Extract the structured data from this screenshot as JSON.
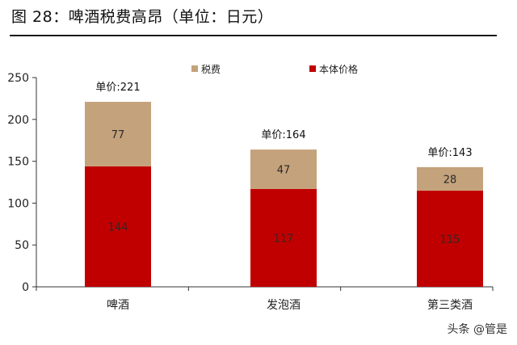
{
  "figure": {
    "title": "图 28：啤酒税费高昂（单位：日元）",
    "watermark": "头条 @管是"
  },
  "colors": {
    "tax": "#C4A27B",
    "base": "#C00000",
    "axis": "#333333"
  },
  "chart_data": {
    "type": "bar",
    "stacked": true,
    "categories": [
      "啤酒",
      "发泡酒",
      "第三类酒"
    ],
    "series": [
      {
        "name": "本体价格",
        "values": [
          144,
          117,
          115
        ]
      },
      {
        "name": "税费",
        "values": [
          77,
          47,
          28
        ]
      }
    ],
    "totals": [
      221,
      164,
      143
    ],
    "total_labels": [
      "单价:221",
      "单价:164",
      "单价:143"
    ],
    "ylim": [
      0,
      250
    ],
    "yticks": [
      0,
      50,
      100,
      150,
      200,
      250
    ],
    "legend": [
      "税费",
      "本体价格"
    ],
    "legend_position": "top",
    "grid": false
  }
}
